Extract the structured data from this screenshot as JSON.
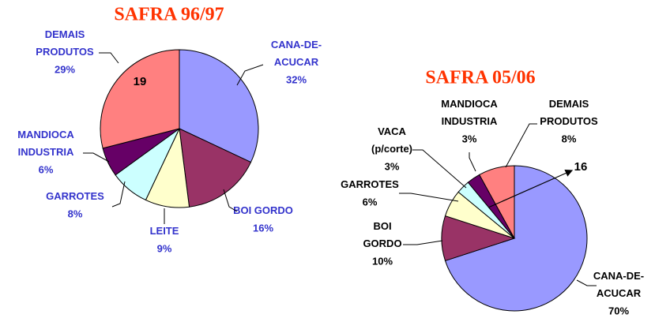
{
  "chart_data": [
    {
      "type": "pie",
      "title": "SAFRA 96/97",
      "categories": [
        "CANA-DE-\nACUCAR",
        "BOI GORDO",
        "LEITE",
        "GARROTES",
        "MANDIOCA\nINDUSTRIA",
        "DEMAIS\nPRODUTOS"
      ],
      "values": [
        32,
        16,
        9,
        8,
        6,
        29
      ],
      "value_labels": [
        "32%",
        "16%",
        "9%",
        "8%",
        "6%",
        "29%"
      ],
      "colors": [
        "#9999ff",
        "#993366",
        "#ffffcc",
        "#ccffff",
        "#660066",
        "#ff8080"
      ],
      "label_color": "#3333cc",
      "annotation": "19"
    },
    {
      "type": "pie",
      "title": "SAFRA 05/06",
      "categories": [
        "CANA-DE-\nACUCAR",
        "BOI\nGORDO",
        "GARROTES",
        "VACA\n(p/corte)",
        "MANDIOCA\nINDUSTRIA",
        "DEMAIS\nPRODUTOS"
      ],
      "values": [
        70,
        10,
        6,
        3,
        3,
        8
      ],
      "value_labels": [
        "70%",
        "10%",
        "6%",
        "3%",
        "3%",
        "8%"
      ],
      "colors": [
        "#9999ff",
        "#993366",
        "#ffffcc",
        "#ccffff",
        "#660066",
        "#ff8080"
      ],
      "label_color": "#000000",
      "annotation": "16"
    }
  ]
}
